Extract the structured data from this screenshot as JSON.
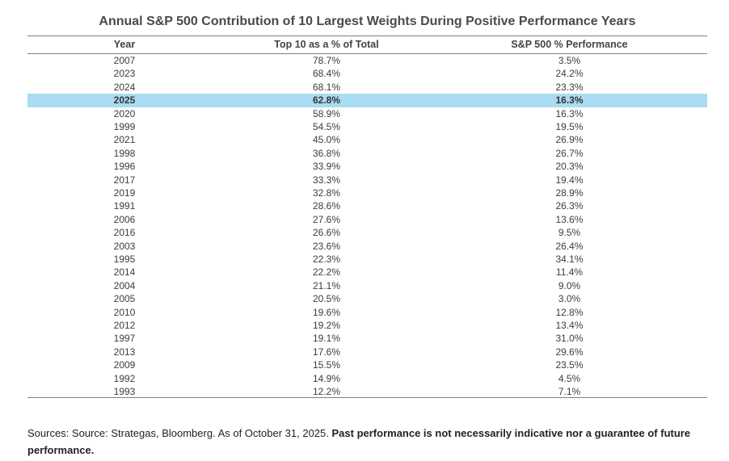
{
  "chart_data": {
    "type": "table",
    "title": "Annual S&P 500 Contribution of 10 Largest Weights During Positive Performance Years",
    "columns": [
      "Year",
      "Top 10 as a % of Total",
      "S&P 500 % Performance"
    ],
    "highlight_year": "2025",
    "highlight_color": "#a9dcf3",
    "rows": [
      [
        "2007",
        "78.7%",
        "3.5%"
      ],
      [
        "2023",
        "68.4%",
        "24.2%"
      ],
      [
        "2024",
        "68.1%",
        "23.3%"
      ],
      [
        "2025",
        "62.8%",
        "16.3%"
      ],
      [
        "2020",
        "58.9%",
        "16.3%"
      ],
      [
        "1999",
        "54.5%",
        "19.5%"
      ],
      [
        "2021",
        "45.0%",
        "26.9%"
      ],
      [
        "1998",
        "36.8%",
        "26.7%"
      ],
      [
        "1996",
        "33.9%",
        "20.3%"
      ],
      [
        "2017",
        "33.3%",
        "19.4%"
      ],
      [
        "2019",
        "32.8%",
        "28.9%"
      ],
      [
        "1991",
        "28.6%",
        "26.3%"
      ],
      [
        "2006",
        "27.6%",
        "13.6%"
      ],
      [
        "2016",
        "26.6%",
        "9.5%"
      ],
      [
        "2003",
        "23.6%",
        "26.4%"
      ],
      [
        "1995",
        "22.3%",
        "34.1%"
      ],
      [
        "2014",
        "22.2%",
        "11.4%"
      ],
      [
        "2004",
        "21.1%",
        "9.0%"
      ],
      [
        "2005",
        "20.5%",
        "3.0%"
      ],
      [
        "2010",
        "19.6%",
        "12.8%"
      ],
      [
        "2012",
        "19.2%",
        "13.4%"
      ],
      [
        "1997",
        "19.1%",
        "31.0%"
      ],
      [
        "2013",
        "17.6%",
        "29.6%"
      ],
      [
        "2009",
        "15.5%",
        "23.5%"
      ],
      [
        "1992",
        "14.9%",
        "4.5%"
      ],
      [
        "1993",
        "12.2%",
        "7.1%"
      ]
    ]
  },
  "footer": {
    "sources": "Sources: Source: Strategas, Bloomberg. As of October 31, 2025.",
    "disclaimer": "Past performance is not necessarily indicative nor a guarantee of future performance."
  }
}
